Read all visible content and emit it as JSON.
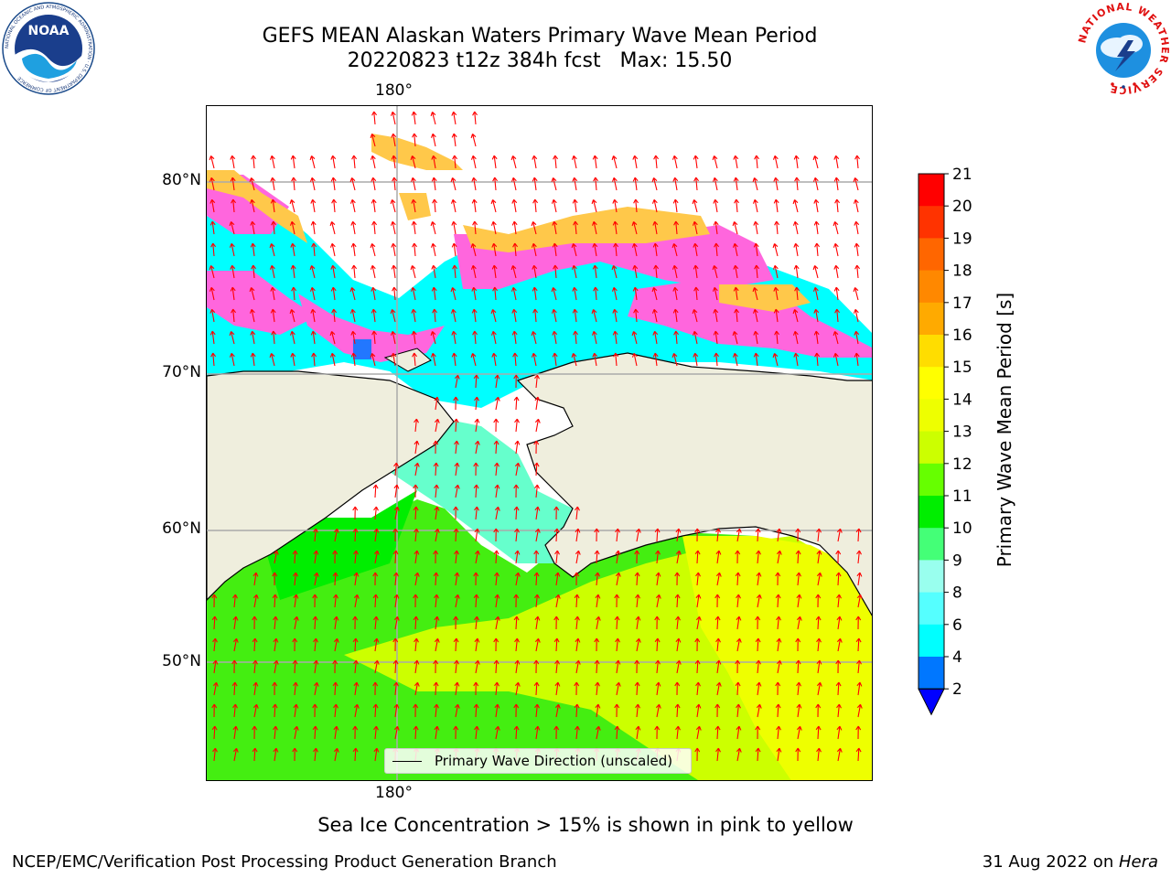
{
  "header": {
    "title_line1": "GEFS MEAN Alaskan Waters Primary Wave Mean Period",
    "title_line2": "20220823 t12z 384h fcst   Max: 15.50"
  },
  "logos": {
    "noaa_text": "NOAA",
    "noaa_ring_text": "NATIONAL OCEANIC AND ATMOSPHERIC ADMINISTRATION · U.S. DEPARTMENT OF COMMERCE",
    "nws_ring_text": "NATIONAL WEATHER SERVICE"
  },
  "map": {
    "lon_label_top": "180°",
    "lon_label_bottom": "180°",
    "lat_labels": [
      "80°N",
      "70°N",
      "60°N",
      "50°N"
    ],
    "legend_label": "Primary Wave Direction (unscaled)",
    "colors": {
      "land": "#efeedd",
      "ice_pink": "#ff66dd",
      "ice_yellow": "#ffc84a",
      "period_cyan": "#00ffff",
      "period_green": "#44ee11",
      "period_yellowgreen": "#ccff00",
      "period_yellow": "#eeff00",
      "arrow": "#ff0000",
      "grid": "#aaaaaa"
    }
  },
  "colorbar": {
    "label": "Primary Wave Mean Period [s]",
    "ticks": [
      "21",
      "20",
      "19",
      "18",
      "17",
      "16",
      "15",
      "14",
      "13",
      "12",
      "11",
      "10",
      "9",
      "8",
      "6",
      "4",
      "2"
    ],
    "colors": [
      "#ff0000",
      "#ff3300",
      "#ff6600",
      "#ff8800",
      "#ffaa00",
      "#ffdd00",
      "#ffff00",
      "#eeff00",
      "#ccff00",
      "#66ff00",
      "#00ee00",
      "#44ff77",
      "#99ffee",
      "#55ffff",
      "#00ffff",
      "#0077ff",
      "#0000ff"
    ]
  },
  "notes": {
    "ice_note": "Sea Ice Concentration > 15% is shown in pink to yellow"
  },
  "footer": {
    "left": "NCEP/EMC/Verification Post Processing Product Generation Branch",
    "date": "31 Aug 2022 on ",
    "host": "Hera"
  }
}
